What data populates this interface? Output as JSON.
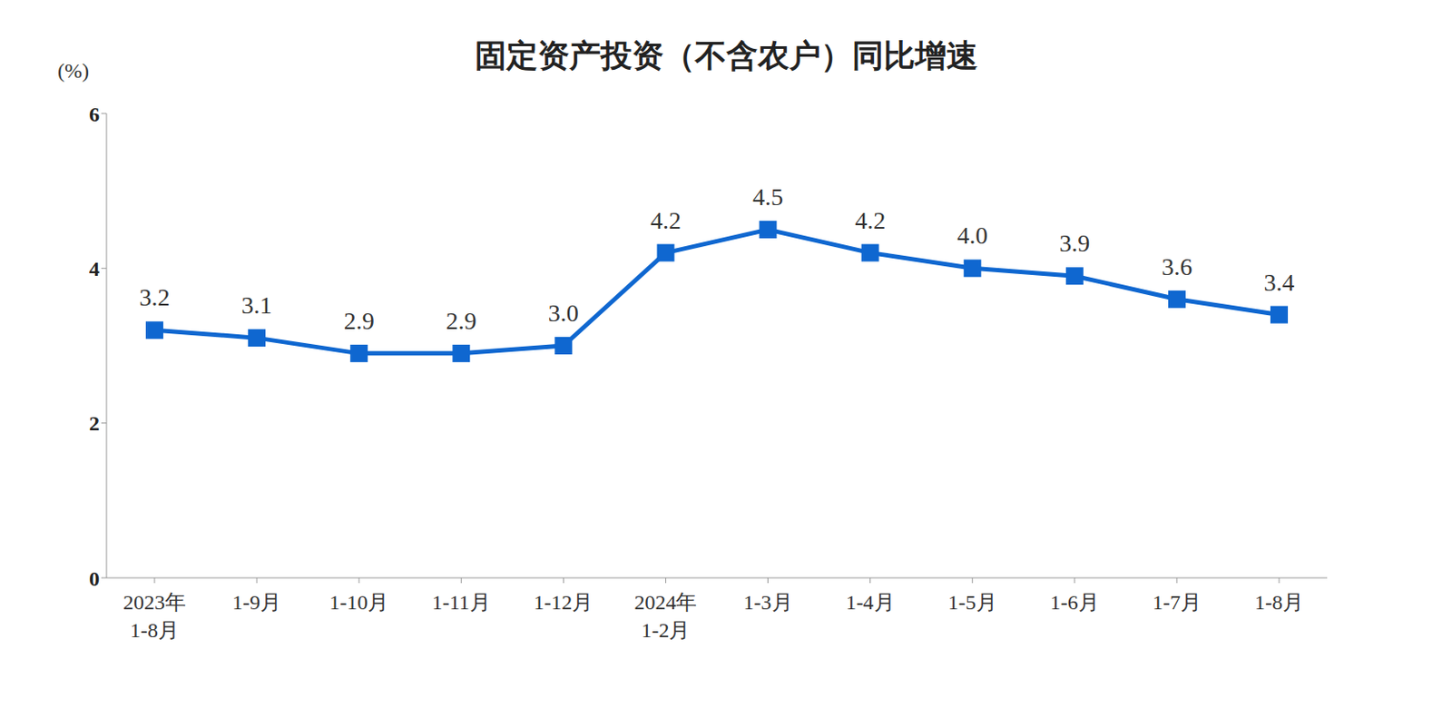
{
  "chart_data": {
    "type": "line",
    "title": "固定资产投资（不含农户）同比增速",
    "y_label": "(%)",
    "categories": [
      "2023年1-8月",
      "1-9月",
      "1-10月",
      "1-11月",
      "1-12月",
      "2024年1-2月",
      "1-3月",
      "1-4月",
      "1-5月",
      "1-6月",
      "1-7月",
      "1-8月"
    ],
    "values": [
      3.2,
      3.1,
      2.9,
      2.9,
      3.0,
      4.2,
      4.5,
      4.2,
      4.0,
      3.9,
      3.6,
      3.4
    ],
    "value_labels": [
      "3.2",
      "3.1",
      "2.9",
      "2.9",
      "3.0",
      "4.2",
      "4.5",
      "4.2",
      "4.0",
      "3.9",
      "3.6",
      "3.4"
    ],
    "color": "#0f67d0",
    "marker": "square",
    "ylim": [
      0,
      6
    ],
    "yticks": [
      0,
      2,
      4,
      6
    ],
    "grid": false,
    "data_labels": true
  }
}
